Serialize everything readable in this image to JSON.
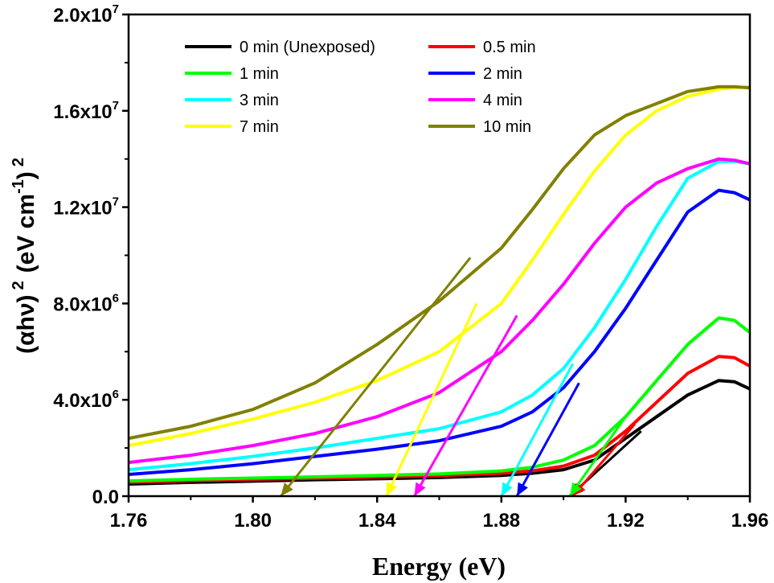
{
  "chart_data": {
    "type": "line",
    "xlabel": "Energy (eV)",
    "ylabel": {
      "base": "(αhν)",
      "exponent": "2",
      "units_main": "(eV cm",
      "units_exp": "-1",
      "units_close": ")",
      "units_exp2": "2"
    },
    "xlim": [
      1.76,
      1.96
    ],
    "ylim": [
      0,
      20000000
    ],
    "xticks": [
      {
        "value": 1.76,
        "label": "1.76"
      },
      {
        "value": 1.8,
        "label": "1.80"
      },
      {
        "value": 1.84,
        "label": "1.84"
      },
      {
        "value": 1.88,
        "label": "1.88"
      },
      {
        "value": 1.92,
        "label": "1.92"
      },
      {
        "value": 1.96,
        "label": "1.96"
      }
    ],
    "yticks": [
      {
        "value": 0,
        "label": "0.0",
        "exp": ""
      },
      {
        "value": 4000000,
        "label": "4.0x10",
        "exp": "6"
      },
      {
        "value": 8000000,
        "label": "8.0x10",
        "exp": "6"
      },
      {
        "value": 12000000,
        "label": "1.2x10",
        "exp": "7"
      },
      {
        "value": 16000000,
        "label": "1.6x10",
        "exp": "7"
      },
      {
        "value": 20000000,
        "label": "2.0x10",
        "exp": "7"
      }
    ],
    "legend_position": "top-left, two columns",
    "series": [
      {
        "name": "0 min (Unexposed)",
        "color": "#000000",
        "x": [
          1.76,
          1.78,
          1.8,
          1.82,
          1.84,
          1.86,
          1.88,
          1.89,
          1.9,
          1.91,
          1.92,
          1.93,
          1.94,
          1.95,
          1.955,
          1.96
        ],
        "y": [
          500000,
          570000,
          620000,
          680000,
          720000,
          770000,
          860000,
          950000,
          1100000,
          1500000,
          2400000,
          3300000,
          4200000,
          4800000,
          4750000,
          4450000
        ],
        "tangent": {
          "from": [
            1.925,
            2700000
          ],
          "to": [
            1.902,
            0
          ]
        }
      },
      {
        "name": "0.5 min",
        "color": "#ff0000",
        "x": [
          1.76,
          1.78,
          1.8,
          1.82,
          1.84,
          1.86,
          1.88,
          1.89,
          1.9,
          1.91,
          1.92,
          1.93,
          1.94,
          1.95,
          1.955,
          1.96
        ],
        "y": [
          580000,
          640000,
          700000,
          740000,
          790000,
          850000,
          950000,
          1050000,
          1250000,
          1700000,
          2700000,
          3900000,
          5100000,
          5800000,
          5750000,
          5400000
        ],
        "tangent": {
          "from": [
            1.923,
            3000000
          ],
          "to": [
            1.903,
            0
          ]
        }
      },
      {
        "name": "1 min",
        "color": "#00ff00",
        "x": [
          1.76,
          1.78,
          1.8,
          1.82,
          1.84,
          1.86,
          1.88,
          1.89,
          1.9,
          1.91,
          1.92,
          1.93,
          1.94,
          1.95,
          1.955,
          1.96
        ],
        "y": [
          630000,
          700000,
          750000,
          800000,
          860000,
          920000,
          1050000,
          1200000,
          1500000,
          2100000,
          3300000,
          4800000,
          6300000,
          7400000,
          7300000,
          6800000
        ],
        "tangent": {
          "from": [
            1.92,
            3300000
          ],
          "to": [
            1.902,
            0
          ]
        }
      },
      {
        "name": "2 min",
        "color": "#0000ff",
        "x": [
          1.76,
          1.78,
          1.8,
          1.82,
          1.84,
          1.86,
          1.88,
          1.89,
          1.9,
          1.91,
          1.92,
          1.93,
          1.94,
          1.95,
          1.955,
          1.96
        ],
        "y": [
          900000,
          1100000,
          1350000,
          1650000,
          1950000,
          2300000,
          2900000,
          3500000,
          4500000,
          6000000,
          7800000,
          9800000,
          11800000,
          12700000,
          12600000,
          12300000
        ],
        "tangent": {
          "from": [
            1.905,
            4700000
          ],
          "to": [
            1.885,
            0
          ]
        }
      },
      {
        "name": "3 min",
        "color": "#00ffff",
        "x": [
          1.76,
          1.78,
          1.8,
          1.82,
          1.84,
          1.86,
          1.88,
          1.89,
          1.9,
          1.91,
          1.92,
          1.93,
          1.94,
          1.95,
          1.955,
          1.96
        ],
        "y": [
          1100000,
          1350000,
          1650000,
          2000000,
          2400000,
          2800000,
          3500000,
          4200000,
          5300000,
          7000000,
          9000000,
          11200000,
          13200000,
          13900000,
          13900000,
          13800000
        ],
        "tangent": {
          "from": [
            1.903,
            5500000
          ],
          "to": [
            1.88,
            0
          ]
        }
      },
      {
        "name": "4 min",
        "color": "#ff00ff",
        "x": [
          1.76,
          1.78,
          1.8,
          1.82,
          1.84,
          1.86,
          1.88,
          1.89,
          1.9,
          1.91,
          1.92,
          1.93,
          1.94,
          1.95,
          1.955,
          1.96
        ],
        "y": [
          1400000,
          1700000,
          2100000,
          2600000,
          3300000,
          4300000,
          6000000,
          7300000,
          8800000,
          10500000,
          12000000,
          13000000,
          13600000,
          14000000,
          13950000,
          13800000
        ],
        "tangent": {
          "from": [
            1.885,
            7500000
          ],
          "to": [
            1.852,
            0
          ]
        }
      },
      {
        "name": "7 min",
        "color": "#ffff00",
        "x": [
          1.76,
          1.78,
          1.8,
          1.82,
          1.84,
          1.86,
          1.88,
          1.89,
          1.9,
          1.91,
          1.92,
          1.93,
          1.94,
          1.95,
          1.955,
          1.96
        ],
        "y": [
          2100000,
          2600000,
          3200000,
          3900000,
          4800000,
          6000000,
          8000000,
          9800000,
          11700000,
          13500000,
          15000000,
          16000000,
          16600000,
          16900000,
          16950000,
          17000000
        ],
        "tangent": {
          "from": [
            1.872,
            8000000
          ],
          "to": [
            1.843,
            0
          ]
        }
      },
      {
        "name": "10 min",
        "color": "#808000",
        "x": [
          1.76,
          1.78,
          1.8,
          1.82,
          1.84,
          1.86,
          1.88,
          1.89,
          1.9,
          1.91,
          1.92,
          1.93,
          1.94,
          1.95,
          1.955,
          1.96
        ],
        "y": [
          2400000,
          2900000,
          3600000,
          4700000,
          6300000,
          8100000,
          10300000,
          11900000,
          13600000,
          15000000,
          15800000,
          16300000,
          16800000,
          17000000,
          17000000,
          16950000
        ],
        "tangent": {
          "from": [
            1.87,
            9900000
          ],
          "to": [
            1.809,
            0
          ]
        }
      }
    ]
  }
}
